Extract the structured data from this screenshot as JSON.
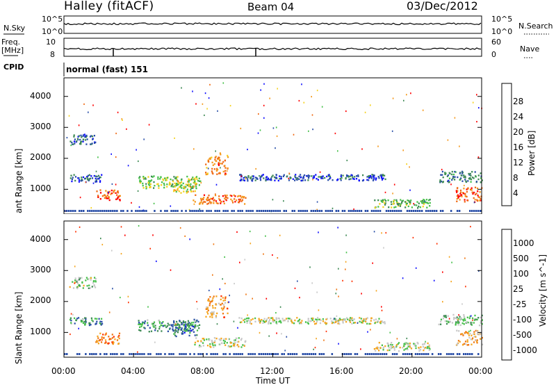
{
  "header": {
    "station": "Halley (fitACF)",
    "beam": "Beam 04",
    "date": "03/Dec/2012"
  },
  "colors": {
    "power_scale": [
      "#1010ff",
      "#2a4fa8",
      "#3f8a55",
      "#46c04a",
      "#f5d21e",
      "#f59a1e",
      "#f06a14",
      "#ff0000"
    ],
    "velocity_scale": [
      "#1010ff",
      "#2a4fa8",
      "#3f8a55",
      "#46c04a",
      "#c8c8c8",
      "#f5a51e",
      "#f07814",
      "#ff3000",
      "#ff0000"
    ]
  },
  "params_panel": {
    "nsky_label": "N.Sky",
    "nsky_ticks": [
      "10^5",
      "10^0"
    ],
    "nsearch_label": "N.Search",
    "nsearch_ticks": [
      "10^5",
      "10^0"
    ],
    "freq_label_1": "Freq.",
    "freq_label_2": "[MHz]",
    "freq_ticks": [
      "10",
      "8"
    ],
    "nave_label": "Nave",
    "nave_ticks": [
      "60",
      "0"
    ],
    "cpid_label": "CPID",
    "cpid_value": "normal (fast) 151"
  },
  "chart_data": [
    {
      "type": "heatmap",
      "panel": "power",
      "ylabel": "Slant Range [km]",
      "y_ticks": [
        "1000",
        "2000",
        "3000",
        "4000"
      ],
      "ylim": [
        200,
        4600
      ],
      "x_range_hours": [
        0,
        24
      ],
      "colorbar_label": "Power [dB]",
      "colorbar_ticks": [
        "28",
        "24",
        "20",
        "16",
        "12",
        "8",
        "4"
      ],
      "colorbar_range": [
        0,
        32
      ],
      "echo_regions": [
        {
          "t0": 0.3,
          "t1": 1.8,
          "r0": 2450,
          "r1": 2800,
          "level": 0.22
        },
        {
          "t0": 0.3,
          "t1": 2.2,
          "r0": 1250,
          "r1": 1500,
          "level": 0.2
        },
        {
          "t0": 1.8,
          "t1": 3.2,
          "r0": 650,
          "r1": 1000,
          "level": 0.8
        },
        {
          "t0": 4.2,
          "t1": 7.8,
          "r0": 1050,
          "r1": 1450,
          "level": 0.45
        },
        {
          "t0": 6.2,
          "t1": 7.6,
          "r0": 900,
          "r1": 1300,
          "level": 0.55
        },
        {
          "t0": 8.1,
          "t1": 9.4,
          "r0": 1500,
          "r1": 2200,
          "level": 0.75
        },
        {
          "t0": 7.4,
          "t1": 10.4,
          "r0": 550,
          "r1": 850,
          "level": 0.78
        },
        {
          "t0": 10.0,
          "t1": 18.5,
          "r0": 1300,
          "r1": 1500,
          "level": 0.18
        },
        {
          "t0": 17.8,
          "t1": 21.0,
          "r0": 420,
          "r1": 700,
          "level": 0.4
        },
        {
          "t0": 21.5,
          "t1": 24.0,
          "r0": 1250,
          "r1": 1600,
          "level": 0.25
        },
        {
          "t0": 22.5,
          "t1": 24.0,
          "r0": 600,
          "r1": 1100,
          "level": 0.8
        }
      ]
    },
    {
      "type": "heatmap",
      "panel": "velocity",
      "ylabel": "Slant Range [km]",
      "xlabel": "Time UT",
      "x_ticks": [
        "00:00",
        "04:00",
        "08:00",
        "12:00",
        "16:00",
        "20:00",
        "00:00"
      ],
      "y_ticks": [
        "1000",
        "2000",
        "3000",
        "4000"
      ],
      "ylim": [
        200,
        4600
      ],
      "x_range_hours": [
        0,
        24
      ],
      "colorbar_label": "Velocity [m s^-1]",
      "colorbar_ticks": [
        "1000",
        "500",
        "100",
        "25",
        "-25",
        "-100",
        "-500",
        "-1000"
      ],
      "echo_regions": [
        {
          "t0": 0.3,
          "t1": 1.8,
          "r0": 2450,
          "r1": 2800,
          "level": 0.45
        },
        {
          "t0": 0.3,
          "t1": 2.2,
          "r0": 1250,
          "r1": 1500,
          "level": 0.3
        },
        {
          "t0": 1.8,
          "t1": 3.2,
          "r0": 650,
          "r1": 1000,
          "level": 0.7
        },
        {
          "t0": 4.2,
          "t1": 7.8,
          "r0": 1050,
          "r1": 1450,
          "level": 0.3
        },
        {
          "t0": 6.2,
          "t1": 7.6,
          "r0": 900,
          "r1": 1300,
          "level": 0.25
        },
        {
          "t0": 8.1,
          "t1": 9.4,
          "r0": 1500,
          "r1": 2200,
          "level": 0.65
        },
        {
          "t0": 7.4,
          "t1": 10.4,
          "r0": 550,
          "r1": 850,
          "level": 0.5
        },
        {
          "t0": 10.0,
          "t1": 18.5,
          "r0": 1300,
          "r1": 1500,
          "level": 0.5
        },
        {
          "t0": 17.8,
          "t1": 21.0,
          "r0": 420,
          "r1": 700,
          "level": 0.5
        },
        {
          "t0": 21.5,
          "t1": 24.0,
          "r0": 1250,
          "r1": 1600,
          "level": 0.4
        },
        {
          "t0": 22.5,
          "t1": 24.0,
          "r0": 600,
          "r1": 1100,
          "level": 0.65
        }
      ]
    }
  ]
}
